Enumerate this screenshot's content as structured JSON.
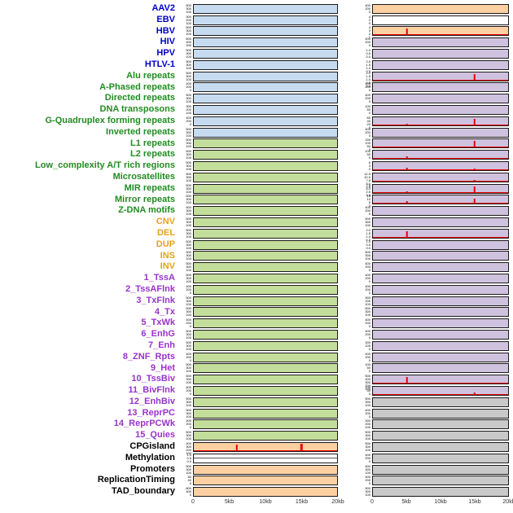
{
  "chart_data": {
    "type": "bar",
    "description": "Multi-track genome feature figure: 44 rows, each with a left and right mini bar-track panel over a 0-20kb window; red vertical bars mark signal peaks.",
    "x_axis": {
      "range_kb": [
        0,
        20
      ],
      "tick_labels": [
        "0",
        "5kb",
        "10kb",
        "15kb",
        "20kb"
      ]
    },
    "label_colors": {
      "virus": "#0000cd",
      "repeat": "#228b22",
      "sv": "#e8a019",
      "chromatin": "#9933cc",
      "other": "#000000"
    },
    "panel_colors": {
      "blue": "#c6dbef",
      "green": "#c3de9b",
      "orange": "#fdd0a2",
      "purple": "#cfc2de",
      "gray": "#c9c9c9",
      "white": "#ffffff"
    },
    "peak_color": "#ee0000",
    "rows": [
      {
        "label": "AAV2",
        "group": "virus",
        "left": {
          "bg": "blue",
          "ticks": [
            "500",
            "300",
            "100"
          ]
        },
        "right": {
          "bg": "orange",
          "ticks": [
            "400",
            "200",
            "0"
          ]
        }
      },
      {
        "label": "EBV",
        "group": "virus",
        "left": {
          "bg": "blue",
          "ticks": [
            "300",
            "200",
            "100"
          ]
        },
        "right": {
          "bg": "white",
          "ticks": [
            "4",
            "2",
            "0"
          ]
        }
      },
      {
        "label": "HBV",
        "group": "virus",
        "left": {
          "bg": "blue",
          "ticks": [
            "500",
            "300",
            "100"
          ]
        },
        "right": {
          "bg": "orange",
          "ticks": [
            "4",
            "3",
            "2",
            "1"
          ],
          "peaks": [
            {
              "x": 5,
              "h": 0.8
            }
          ],
          "baseline": true
        }
      },
      {
        "label": "HIV",
        "group": "virus",
        "left": {
          "bg": "blue",
          "ticks": [
            "600",
            "400",
            "200"
          ]
        },
        "right": {
          "bg": "purple",
          "ticks": [
            "400",
            "200",
            "0"
          ]
        }
      },
      {
        "label": "HPV",
        "group": "virus",
        "left": {
          "bg": "blue",
          "ticks": [
            "500",
            "300",
            "100"
          ]
        },
        "right": {
          "bg": "purple",
          "ticks": [
            "1.0",
            "0.5",
            "0.0"
          ]
        }
      },
      {
        "label": "HTLV-1",
        "group": "virus",
        "left": {
          "bg": "blue",
          "ticks": [
            "500",
            "300",
            "100"
          ]
        },
        "right": {
          "bg": "purple",
          "ticks": [
            "2.0",
            "1.5",
            "1.0",
            "0.5"
          ]
        }
      },
      {
        "label": "Alu repeats",
        "group": "repeat",
        "left": {
          "bg": "blue",
          "ticks": [
            "500",
            "300",
            "100"
          ]
        },
        "right": {
          "bg": "purple",
          "ticks": [
            "2.0",
            "1.5",
            "1.0",
            "0.5",
            "0.0"
          ],
          "peaks": [
            {
              "x": 15,
              "h": 0.8
            }
          ],
          "baseline": true
        }
      },
      {
        "label": "A-Phased repeats",
        "group": "repeat",
        "left": {
          "bg": "blue",
          "ticks": [
            "400",
            "200",
            "0"
          ]
        },
        "right": {
          "bg": "purple",
          "ticks": [
            "400",
            "200",
            "0"
          ]
        }
      },
      {
        "label": "Directed repeats",
        "group": "repeat",
        "left": {
          "bg": "blue",
          "ticks": [
            "500",
            "300",
            "100"
          ]
        },
        "right": {
          "bg": "purple",
          "ticks": [
            "400",
            "200",
            "0"
          ]
        }
      },
      {
        "label": "DNA transposons",
        "group": "repeat",
        "left": {
          "bg": "blue",
          "ticks": [
            "300",
            "200",
            "100"
          ]
        },
        "right": {
          "bg": "purple",
          "ticks": [
            "100",
            "50",
            "0"
          ]
        }
      },
      {
        "label": "G-Quadruplex forming repeats",
        "group": "repeat",
        "left": {
          "bg": "blue",
          "ticks": [
            "400",
            "200",
            "0"
          ]
        },
        "right": {
          "bg": "purple",
          "ticks": [
            "60",
            "40",
            "20",
            "0"
          ],
          "peaks": [
            {
              "x": 15,
              "h": 0.75
            },
            {
              "x": 5,
              "h": 0.15
            }
          ],
          "baseline": true
        }
      },
      {
        "label": "Inverted repeats",
        "group": "repeat",
        "left": {
          "bg": "blue",
          "ticks": [
            "500",
            "300",
            "100"
          ]
        },
        "right": {
          "bg": "purple",
          "ticks": [
            "400",
            "200",
            "0"
          ]
        }
      },
      {
        "label": "L1 repeats",
        "group": "repeat",
        "left": {
          "bg": "green",
          "ticks": [
            "500",
            "300",
            "100"
          ]
        },
        "right": {
          "bg": "purple",
          "ticks": [
            "150",
            "100",
            "50",
            "0"
          ],
          "peaks": [
            {
              "x": 15,
              "h": 0.88
            }
          ],
          "baseline": true
        }
      },
      {
        "label": "L2 repeats",
        "group": "repeat",
        "left": {
          "bg": "green",
          "ticks": [
            "500",
            "300",
            "100"
          ]
        },
        "right": {
          "bg": "purple",
          "ticks": [
            "100",
            "50",
            "0"
          ],
          "peaks": [
            {
              "x": 5,
              "h": 0.35
            }
          ],
          "baseline": true
        }
      },
      {
        "label": "Low_complexity A/T rich regions",
        "group": "repeat",
        "left": {
          "bg": "green",
          "ticks": [
            "500",
            "300",
            "100"
          ]
        },
        "right": {
          "bg": "purple",
          "ticks": [
            "6",
            "4",
            "2"
          ],
          "peaks": [
            {
              "x": 5,
              "h": 0.3
            },
            {
              "x": 15,
              "h": 0.2
            }
          ],
          "baseline": true
        }
      },
      {
        "label": "Microsatellites",
        "group": "repeat",
        "left": {
          "bg": "green",
          "ticks": [
            "500",
            "300",
            "100"
          ]
        },
        "right": {
          "bg": "purple",
          "ticks": [
            "12.5",
            "10.0",
            "7.5",
            "5.0",
            "2.5"
          ],
          "peaks": [
            {
              "x": 15,
              "h": 0.2
            }
          ],
          "baseline": true
        }
      },
      {
        "label": "MIR repeats",
        "group": "repeat",
        "left": {
          "bg": "green",
          "ticks": [
            "500",
            "300",
            "100"
          ]
        },
        "right": {
          "bg": "purple",
          "ticks": [
            "7.5",
            "5.0",
            "2.5",
            "0.0"
          ],
          "peaks": [
            {
              "x": 15,
              "h": 0.75
            },
            {
              "x": 5,
              "h": 0.15
            }
          ],
          "baseline": true
        }
      },
      {
        "label": "Mirror repeats",
        "group": "repeat",
        "left": {
          "bg": "green",
          "ticks": [
            "500",
            "300",
            "100"
          ]
        },
        "right": {
          "bg": "purple",
          "ticks": [
            "15",
            "10",
            "5",
            "0"
          ],
          "peaks": [
            {
              "x": 5,
              "h": 0.3
            },
            {
              "x": 15,
              "h": 0.65
            }
          ],
          "baseline": true
        }
      },
      {
        "label": "Z-DNA motifs",
        "group": "repeat",
        "left": {
          "bg": "green",
          "ticks": [
            "500",
            "300",
            "100"
          ]
        },
        "right": {
          "bg": "purple",
          "ticks": [
            "400",
            "200",
            "0"
          ]
        }
      },
      {
        "label": "CNV",
        "group": "sv",
        "left": {
          "bg": "green",
          "ticks": [
            "500",
            "300",
            "100"
          ]
        },
        "right": {
          "bg": "purple",
          "ticks": [
            "500",
            "300",
            "100"
          ]
        }
      },
      {
        "label": "DEL",
        "group": "sv",
        "left": {
          "bg": "green",
          "ticks": [
            "500",
            "300",
            "100"
          ]
        },
        "right": {
          "bg": "purple",
          "ticks": [
            "2.0",
            "1.5",
            "1.0",
            "0.5"
          ],
          "peaks": [
            {
              "x": 5,
              "h": 0.8
            }
          ],
          "baseline": true
        }
      },
      {
        "label": "DUP",
        "group": "sv",
        "left": {
          "bg": "green",
          "ticks": [
            "500",
            "300",
            "100"
          ]
        },
        "right": {
          "bg": "purple",
          "ticks": [
            "1.0",
            "0.5",
            "0.0"
          ]
        }
      },
      {
        "label": "INS",
        "group": "sv",
        "left": {
          "bg": "green",
          "ticks": [
            "500",
            "300",
            "100"
          ]
        },
        "right": {
          "bg": "purple",
          "ticks": [
            "500",
            "300",
            "100"
          ]
        }
      },
      {
        "label": "INV",
        "group": "sv",
        "left": {
          "bg": "green",
          "ticks": [
            "500",
            "300",
            "100"
          ]
        },
        "right": {
          "bg": "purple",
          "ticks": [
            "400",
            "200",
            "0"
          ]
        }
      },
      {
        "label": "1_TssA",
        "group": "chromatin",
        "left": {
          "bg": "green",
          "ticks": [
            "500",
            "300",
            "100"
          ]
        },
        "right": {
          "bg": "purple",
          "ticks": [
            "400",
            "200",
            "0"
          ]
        }
      },
      {
        "label": "2_TssAFlnk",
        "group": "chromatin",
        "left": {
          "bg": "green",
          "ticks": [
            "400",
            "200",
            "0"
          ]
        },
        "right": {
          "bg": "purple",
          "ticks": [
            "400",
            "200",
            "0"
          ]
        }
      },
      {
        "label": "3_TxFlnk",
        "group": "chromatin",
        "left": {
          "bg": "green",
          "ticks": [
            "500",
            "300",
            "100"
          ]
        },
        "right": {
          "bg": "purple",
          "ticks": [
            "300",
            "200",
            "100"
          ]
        }
      },
      {
        "label": "4_Tx",
        "group": "chromatin",
        "left": {
          "bg": "green",
          "ticks": [
            "500",
            "300",
            "100"
          ]
        },
        "right": {
          "bg": "purple",
          "ticks": [
            "500",
            "300",
            "100"
          ]
        }
      },
      {
        "label": "5_TxWk",
        "group": "chromatin",
        "left": {
          "bg": "green",
          "ticks": [
            "400",
            "200",
            "0"
          ]
        },
        "right": {
          "bg": "purple",
          "ticks": [
            "400",
            "200",
            "0"
          ]
        }
      },
      {
        "label": "6_EnhG",
        "group": "chromatin",
        "left": {
          "bg": "green",
          "ticks": [
            "500",
            "300",
            "100"
          ]
        },
        "right": {
          "bg": "purple",
          "ticks": [
            "400",
            "200",
            "0"
          ]
        }
      },
      {
        "label": "7_Enh",
        "group": "chromatin",
        "left": {
          "bg": "green",
          "ticks": [
            "500",
            "300",
            "100"
          ]
        },
        "right": {
          "bg": "purple",
          "ticks": [
            "300",
            "100",
            "0"
          ]
        }
      },
      {
        "label": "8_ZNF_Rpts",
        "group": "chromatin",
        "left": {
          "bg": "green",
          "ticks": [
            "400",
            "200",
            "0"
          ]
        },
        "right": {
          "bg": "purple",
          "ticks": [
            "400",
            "200",
            "0"
          ]
        }
      },
      {
        "label": "9_Het",
        "group": "chromatin",
        "left": {
          "bg": "green",
          "ticks": [
            "500",
            "300",
            "100"
          ]
        },
        "right": {
          "bg": "purple",
          "ticks": [
            "100",
            "50",
            "0"
          ]
        }
      },
      {
        "label": "10_TssBiv",
        "group": "chromatin",
        "left": {
          "bg": "green",
          "ticks": [
            "500",
            "300",
            "100"
          ]
        },
        "right": {
          "bg": "purple",
          "ticks": [
            "500",
            "400",
            "300",
            "200",
            "100"
          ],
          "peaks": [
            {
              "x": 5,
              "h": 0.8
            }
          ],
          "baseline": true
        }
      },
      {
        "label": "11_BivFlnk",
        "group": "chromatin",
        "left": {
          "bg": "green",
          "ticks": [
            "400",
            "200",
            "0"
          ]
        },
        "right": {
          "bg": "purple",
          "ticks": [
            "100",
            "50",
            "0"
          ],
          "peaks": [
            {
              "x": 15,
              "h": 0.3
            }
          ],
          "baseline": true
        }
      },
      {
        "label": "12_EnhBiv",
        "group": "chromatin",
        "left": {
          "bg": "green",
          "ticks": [
            "500",
            "300",
            "100"
          ]
        },
        "right": {
          "bg": "gray",
          "ticks": [
            "500",
            "300",
            "100"
          ]
        }
      },
      {
        "label": "13_ReprPC",
        "group": "chromatin",
        "left": {
          "bg": "green",
          "ticks": [
            "500",
            "300",
            "100"
          ]
        },
        "right": {
          "bg": "gray",
          "ticks": [
            "400",
            "200",
            "0"
          ]
        }
      },
      {
        "label": "14_ReprPCWk",
        "group": "chromatin",
        "left": {
          "bg": "green",
          "ticks": [
            "400",
            "200",
            "0"
          ]
        },
        "right": {
          "bg": "gray",
          "ticks": [
            "300",
            "200",
            "100"
          ]
        }
      },
      {
        "label": "15_Quies",
        "group": "chromatin",
        "left": {
          "bg": "green",
          "ticks": [
            "500",
            "300",
            "100"
          ]
        },
        "right": {
          "bg": "gray",
          "ticks": [
            "500",
            "300",
            "100"
          ]
        }
      },
      {
        "label": "CPGisland",
        "group": "other",
        "left": {
          "bg": "orange",
          "ticks": [
            "400",
            "300",
            "200",
            "100"
          ],
          "peaks": [
            {
              "x": 6,
              "h": 0.75
            },
            {
              "x": 15,
              "h": 0.9
            }
          ],
          "baseline": true
        },
        "right": {
          "bg": "gray",
          "ticks": [
            "500",
            "300",
            "100"
          ]
        }
      },
      {
        "label": "Methylation",
        "group": "other",
        "left": {
          "bg": "white",
          "ticks": [
            "1.0",
            "0.5",
            "0.0"
          ],
          "line": 0.45
        },
        "right": {
          "bg": "gray",
          "ticks": [
            "400",
            "200",
            "0"
          ]
        }
      },
      {
        "label": "Promoters",
        "group": "other",
        "left": {
          "bg": "orange",
          "ticks": [
            "500",
            "300",
            "100"
          ]
        },
        "right": {
          "bg": "gray",
          "ticks": [
            "500",
            "300",
            "100"
          ]
        }
      },
      {
        "label": "ReplicationTiming",
        "group": "other",
        "left": {
          "bg": "orange",
          "ticks": [
            "80",
            "40",
            "0"
          ]
        },
        "right": {
          "bg": "gray",
          "ticks": [
            "400",
            "200",
            "0"
          ]
        }
      },
      {
        "label": "TAD_boundary",
        "group": "other",
        "left": {
          "bg": "orange",
          "ticks": [
            "800",
            "400",
            "0"
          ]
        },
        "right": {
          "bg": "gray",
          "ticks": [
            "500",
            "300",
            "100"
          ]
        }
      }
    ]
  }
}
